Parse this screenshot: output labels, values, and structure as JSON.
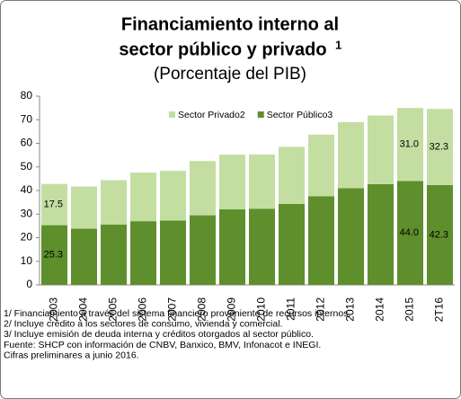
{
  "chart_data": {
    "type": "stacked_bar",
    "title": [
      "Financiamiento interno al",
      "sector público y privado"
    ],
    "title_note": "1",
    "subtitle": "(Porcentaje del PIB)",
    "categories": [
      "2003",
      "2004",
      "2005",
      "2006",
      "2007",
      "2008",
      "2009",
      "2010",
      "2011",
      "2012",
      "2013",
      "2014",
      "2015",
      "2T16"
    ],
    "series": [
      {
        "name": "Sector Público3",
        "color": "#5e8f2c",
        "values": [
          25.3,
          23.8,
          25.6,
          27.0,
          27.3,
          29.5,
          32.0,
          32.3,
          34.3,
          37.6,
          41.0,
          42.7,
          44.0,
          42.3
        ],
        "value_labels": [
          "25.3",
          null,
          null,
          null,
          null,
          null,
          null,
          null,
          null,
          null,
          null,
          null,
          "44.0",
          "42.3"
        ]
      },
      {
        "name": "Sector Privado2",
        "color": "#c4dea2",
        "values": [
          17.5,
          17.9,
          18.8,
          20.6,
          21.0,
          23.0,
          23.2,
          23.0,
          24.2,
          26.1,
          28.0,
          29.1,
          31.0,
          32.3
        ],
        "value_labels": [
          "17.5",
          null,
          null,
          null,
          null,
          null,
          null,
          null,
          null,
          null,
          null,
          null,
          "31.0",
          "32.3"
        ]
      }
    ],
    "ylim": [
      0,
      80
    ],
    "yticks": [
      0,
      10,
      20,
      30,
      40,
      50,
      60,
      70,
      80
    ],
    "grid": false,
    "legend": "top",
    "footnotes": [
      "1/ Financiamiento a través del sistema financiero proveniente de recursos internos.",
      "2/ Incluye crédito a los sectores de consumo, vivienda y comercial.",
      "3/ Incluye emisión de deuda interna y créditos otorgados al sector público.",
      "Fuente: SHCP con información de CNBV, Banxico, BMV, Infonacot e INEGI.",
      "Cifras preliminares a junio 2016."
    ]
  }
}
